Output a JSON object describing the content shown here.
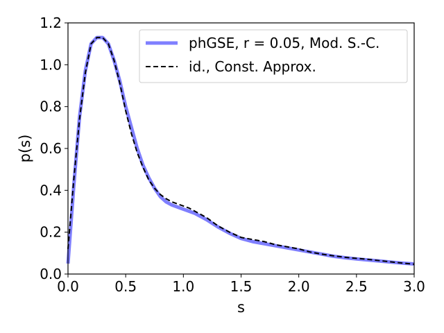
{
  "chart_data": {
    "type": "line",
    "xlabel": "s",
    "ylabel": "p(s)",
    "xlim": [
      0.0,
      3.0
    ],
    "ylim": [
      0.0,
      1.2
    ],
    "xticks": [
      "0.0",
      "0.5",
      "1.0",
      "1.5",
      "2.0",
      "2.5",
      "3.0"
    ],
    "yticks": [
      "0.0",
      "0.2",
      "0.4",
      "0.6",
      "0.8",
      "1.0",
      "1.2"
    ],
    "legend_position": "top-right",
    "grid": false,
    "series": [
      {
        "name": "phGSE, r = 0.05, Mod. S.-C.",
        "color": "#7f7fff",
        "style": "solid-thick",
        "x": [
          0.0,
          0.05,
          0.1,
          0.15,
          0.2,
          0.25,
          0.3,
          0.35,
          0.4,
          0.45,
          0.5,
          0.55,
          0.6,
          0.65,
          0.7,
          0.75,
          0.8,
          0.85,
          0.9,
          0.95,
          1.0,
          1.05,
          1.1,
          1.15,
          1.2,
          1.3,
          1.4,
          1.5,
          1.6,
          1.7,
          1.8,
          1.9,
          2.0,
          2.1,
          2.2,
          2.3,
          2.4,
          2.5,
          2.6,
          2.7,
          2.8,
          2.9,
          3.0
        ],
        "y": [
          0.05,
          0.42,
          0.75,
          0.97,
          1.1,
          1.13,
          1.13,
          1.1,
          1.02,
          0.92,
          0.8,
          0.7,
          0.6,
          0.52,
          0.46,
          0.41,
          0.37,
          0.345,
          0.33,
          0.32,
          0.31,
          0.3,
          0.29,
          0.275,
          0.26,
          0.225,
          0.195,
          0.17,
          0.155,
          0.145,
          0.135,
          0.125,
          0.115,
          0.105,
          0.095,
          0.085,
          0.078,
          0.072,
          0.067,
          0.062,
          0.057,
          0.052,
          0.048
        ]
      },
      {
        "name": "id., Const. Approx.",
        "color": "#000000",
        "style": "dashed",
        "x": [
          0.0,
          0.05,
          0.1,
          0.15,
          0.2,
          0.25,
          0.3,
          0.35,
          0.4,
          0.45,
          0.5,
          0.55,
          0.6,
          0.65,
          0.7,
          0.75,
          0.8,
          0.85,
          0.9,
          0.95,
          1.0,
          1.05,
          1.1,
          1.15,
          1.2,
          1.3,
          1.4,
          1.5,
          1.6,
          1.7,
          1.8,
          1.9,
          2.0,
          2.1,
          2.2,
          2.3,
          2.4,
          2.5,
          2.6,
          2.7,
          2.8,
          2.9,
          3.0
        ],
        "y": [
          0.12,
          0.45,
          0.74,
          0.96,
          1.1,
          1.13,
          1.13,
          1.1,
          1.02,
          0.91,
          0.78,
          0.67,
          0.58,
          0.51,
          0.45,
          0.41,
          0.38,
          0.36,
          0.345,
          0.335,
          0.325,
          0.315,
          0.3,
          0.285,
          0.27,
          0.23,
          0.2,
          0.175,
          0.165,
          0.155,
          0.14,
          0.13,
          0.12,
          0.105,
          0.095,
          0.087,
          0.08,
          0.075,
          0.07,
          0.064,
          0.058,
          0.052,
          0.047
        ]
      }
    ]
  }
}
